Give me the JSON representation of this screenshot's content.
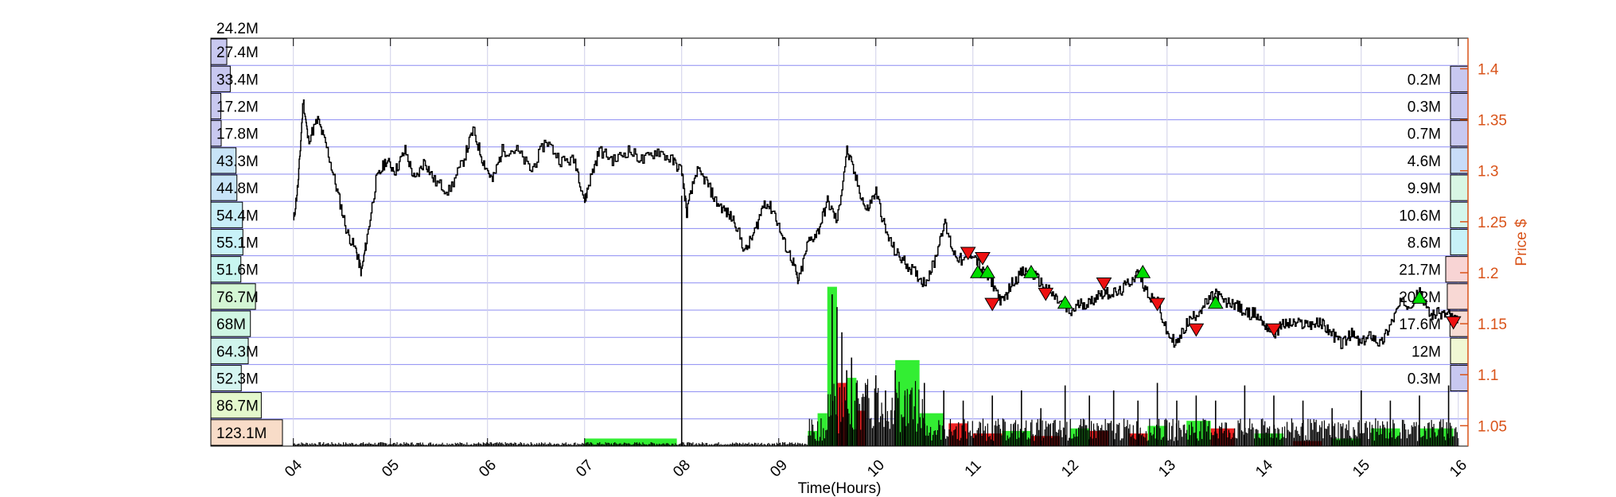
{
  "chart_data": {
    "type": "line",
    "title": "",
    "xlabel": "Time(Hours)",
    "ylabel": "",
    "y2label": "Price $",
    "x_ticks": [
      "04",
      "05",
      "06",
      "07",
      "08",
      "09",
      "10",
      "11",
      "12",
      "13",
      "14",
      "15",
      "16"
    ],
    "xlim": [
      3.15,
      16.1
    ],
    "y2lim": [
      1.03,
      1.43
    ],
    "y2_ticks": [
      1.05,
      1.1,
      1.15,
      1.2,
      1.25,
      1.3,
      1.35,
      1.4
    ],
    "grid": true,
    "colors": {
      "price": "#000000",
      "axis_right": "#d95319",
      "buy_marker": "#00dd00",
      "sell_marker": "#ee1111",
      "volume_up": "#33ee33",
      "volume_down": "#ee2222",
      "volume_base": "#000000",
      "grid_major": "#6666ee",
      "grid_minor": "#d0d0e8"
    },
    "price_series": {
      "name": "",
      "points": [
        [
          4.0,
          1.25
        ],
        [
          4.05,
          1.29
        ],
        [
          4.1,
          1.37
        ],
        [
          4.15,
          1.33
        ],
        [
          4.25,
          1.35
        ],
        [
          4.35,
          1.32
        ],
        [
          4.45,
          1.28
        ],
        [
          4.55,
          1.24
        ],
        [
          4.65,
          1.22
        ],
        [
          4.7,
          1.2
        ],
        [
          4.75,
          1.23
        ],
        [
          4.85,
          1.29
        ],
        [
          4.95,
          1.31
        ],
        [
          5.05,
          1.3
        ],
        [
          5.15,
          1.32
        ],
        [
          5.25,
          1.29
        ],
        [
          5.35,
          1.31
        ],
        [
          5.45,
          1.29
        ],
        [
          5.6,
          1.28
        ],
        [
          5.75,
          1.31
        ],
        [
          5.85,
          1.34
        ],
        [
          5.95,
          1.31
        ],
        [
          6.05,
          1.29
        ],
        [
          6.15,
          1.32
        ],
        [
          6.3,
          1.32
        ],
        [
          6.45,
          1.3
        ],
        [
          6.6,
          1.33
        ],
        [
          6.75,
          1.31
        ],
        [
          6.9,
          1.31
        ],
        [
          7.0,
          1.27
        ],
        [
          7.05,
          1.29
        ],
        [
          7.15,
          1.32
        ],
        [
          7.3,
          1.31
        ],
        [
          7.45,
          1.32
        ],
        [
          7.6,
          1.31
        ],
        [
          7.75,
          1.32
        ],
        [
          7.9,
          1.31
        ],
        [
          8.0,
          1.3
        ],
        [
          8.05,
          1.26
        ],
        [
          8.15,
          1.3
        ],
        [
          8.25,
          1.29
        ],
        [
          8.35,
          1.27
        ],
        [
          8.45,
          1.26
        ],
        [
          8.55,
          1.25
        ],
        [
          8.65,
          1.22
        ],
        [
          8.75,
          1.24
        ],
        [
          8.85,
          1.27
        ],
        [
          8.95,
          1.26
        ],
        [
          9.05,
          1.23
        ],
        [
          9.15,
          1.21
        ],
        [
          9.2,
          1.19
        ],
        [
          9.3,
          1.23
        ],
        [
          9.4,
          1.24
        ],
        [
          9.5,
          1.27
        ],
        [
          9.6,
          1.25
        ],
        [
          9.7,
          1.32
        ],
        [
          9.8,
          1.29
        ],
        [
          9.9,
          1.26
        ],
        [
          10.0,
          1.28
        ],
        [
          10.1,
          1.24
        ],
        [
          10.2,
          1.22
        ],
        [
          10.3,
          1.21
        ],
        [
          10.4,
          1.2
        ],
        [
          10.5,
          1.19
        ],
        [
          10.6,
          1.21
        ],
        [
          10.7,
          1.25
        ],
        [
          10.8,
          1.22
        ],
        [
          10.9,
          1.21
        ],
        [
          11.0,
          1.22
        ],
        [
          11.1,
          1.2
        ],
        [
          11.2,
          1.19
        ],
        [
          11.3,
          1.17
        ],
        [
          11.4,
          1.19
        ],
        [
          11.5,
          1.2
        ],
        [
          11.6,
          1.2
        ],
        [
          11.7,
          1.19
        ],
        [
          11.8,
          1.18
        ],
        [
          11.9,
          1.17
        ],
        [
          12.0,
          1.16
        ],
        [
          12.1,
          1.17
        ],
        [
          12.2,
          1.17
        ],
        [
          12.3,
          1.18
        ],
        [
          12.4,
          1.18
        ],
        [
          12.5,
          1.18
        ],
        [
          12.6,
          1.19
        ],
        [
          12.7,
          1.2
        ],
        [
          12.8,
          1.18
        ],
        [
          12.9,
          1.17
        ],
        [
          13.0,
          1.14
        ],
        [
          13.1,
          1.13
        ],
        [
          13.2,
          1.15
        ],
        [
          13.3,
          1.16
        ],
        [
          13.4,
          1.17
        ],
        [
          13.5,
          1.18
        ],
        [
          13.6,
          1.17
        ],
        [
          13.7,
          1.17
        ],
        [
          13.8,
          1.16
        ],
        [
          13.9,
          1.16
        ],
        [
          14.0,
          1.15
        ],
        [
          14.1,
          1.14
        ],
        [
          14.2,
          1.15
        ],
        [
          14.3,
          1.15
        ],
        [
          14.4,
          1.15
        ],
        [
          14.5,
          1.15
        ],
        [
          14.6,
          1.15
        ],
        [
          14.7,
          1.14
        ],
        [
          14.8,
          1.13
        ],
        [
          14.9,
          1.14
        ],
        [
          15.0,
          1.13
        ],
        [
          15.1,
          1.14
        ],
        [
          15.2,
          1.13
        ],
        [
          15.3,
          1.15
        ],
        [
          15.4,
          1.17
        ],
        [
          15.5,
          1.17
        ],
        [
          15.6,
          1.18
        ],
        [
          15.7,
          1.16
        ],
        [
          15.8,
          1.16
        ],
        [
          15.9,
          1.16
        ],
        [
          16.0,
          1.15
        ]
      ]
    },
    "buy_markers": [
      [
        11.05,
        1.2
      ],
      [
        11.15,
        1.2
      ],
      [
        11.6,
        1.2
      ],
      [
        11.95,
        1.17
      ],
      [
        12.75,
        1.2
      ],
      [
        13.5,
        1.17
      ],
      [
        15.6,
        1.175
      ]
    ],
    "sell_markers": [
      [
        10.95,
        1.22
      ],
      [
        11.1,
        1.215
      ],
      [
        11.2,
        1.17
      ],
      [
        11.75,
        1.18
      ],
      [
        12.35,
        1.19
      ],
      [
        12.9,
        1.17
      ],
      [
        13.3,
        1.145
      ],
      [
        14.1,
        1.145
      ],
      [
        15.95,
        1.152
      ]
    ],
    "volume_spikes": [
      [
        8.0,
        0.99
      ],
      [
        9.55,
        0.6
      ],
      [
        9.6,
        0.55
      ],
      [
        9.65,
        0.45
      ],
      [
        9.7,
        0.3
      ],
      [
        9.75,
        0.35
      ],
      [
        9.8,
        0.25
      ],
      [
        9.9,
        0.2
      ],
      [
        10.0,
        0.28
      ],
      [
        10.1,
        0.22
      ],
      [
        10.2,
        0.3
      ],
      [
        10.3,
        0.2
      ],
      [
        10.5,
        0.25
      ],
      [
        10.7,
        0.22
      ],
      [
        10.9,
        0.18
      ],
      [
        11.2,
        0.2
      ],
      [
        11.5,
        0.22
      ],
      [
        11.7,
        0.15
      ],
      [
        11.95,
        0.24
      ],
      [
        12.2,
        0.2
      ],
      [
        12.45,
        0.22
      ],
      [
        12.7,
        0.18
      ],
      [
        12.9,
        0.25
      ],
      [
        13.1,
        0.18
      ],
      [
        13.3,
        0.2
      ],
      [
        13.5,
        0.18
      ],
      [
        13.8,
        0.24
      ],
      [
        14.1,
        0.2
      ],
      [
        14.4,
        0.18
      ],
      [
        14.7,
        0.15
      ],
      [
        15.0,
        0.22
      ],
      [
        15.3,
        0.18
      ],
      [
        15.6,
        0.2
      ],
      [
        15.9,
        0.24
      ]
    ],
    "volume_blocks": [
      {
        "x0": 7.0,
        "x1": 7.95,
        "h": 0.03,
        "side": "up"
      },
      {
        "x0": 9.3,
        "x1": 9.4,
        "h": 0.06,
        "side": "up"
      },
      {
        "x0": 9.4,
        "x1": 9.5,
        "h": 0.13,
        "side": "up"
      },
      {
        "x0": 9.5,
        "x1": 9.6,
        "h": 0.63,
        "side": "up"
      },
      {
        "x0": 9.6,
        "x1": 9.7,
        "h": 0.25,
        "side": "down"
      },
      {
        "x0": 9.7,
        "x1": 9.8,
        "h": 0.27,
        "side": "up"
      },
      {
        "x0": 9.8,
        "x1": 9.9,
        "h": 0.14,
        "side": "down"
      },
      {
        "x0": 10.2,
        "x1": 10.45,
        "h": 0.34,
        "side": "up"
      },
      {
        "x0": 10.45,
        "x1": 10.7,
        "h": 0.13,
        "side": "up"
      },
      {
        "x0": 10.75,
        "x1": 10.95,
        "h": 0.09,
        "side": "down"
      },
      {
        "x0": 11.0,
        "x1": 11.3,
        "h": 0.05,
        "side": "down"
      },
      {
        "x0": 11.3,
        "x1": 11.6,
        "h": 0.06,
        "side": "up"
      },
      {
        "x0": 11.6,
        "x1": 11.9,
        "h": 0.04,
        "side": "down"
      },
      {
        "x0": 12.0,
        "x1": 12.2,
        "h": 0.07,
        "side": "up"
      },
      {
        "x0": 12.2,
        "x1": 12.4,
        "h": 0.06,
        "side": "down"
      },
      {
        "x0": 12.6,
        "x1": 12.8,
        "h": 0.05,
        "side": "down"
      },
      {
        "x0": 12.8,
        "x1": 13.0,
        "h": 0.08,
        "side": "up"
      },
      {
        "x0": 13.2,
        "x1": 13.45,
        "h": 0.1,
        "side": "up"
      },
      {
        "x0": 13.45,
        "x1": 13.7,
        "h": 0.07,
        "side": "down"
      },
      {
        "x0": 13.9,
        "x1": 14.2,
        "h": 0.05,
        "side": "up"
      },
      {
        "x0": 14.3,
        "x1": 14.6,
        "h": 0.02,
        "side": "down"
      },
      {
        "x0": 14.7,
        "x1": 15.0,
        "h": 0.03,
        "side": "up"
      },
      {
        "x0": 15.1,
        "x1": 15.4,
        "h": 0.07,
        "side": "up"
      },
      {
        "x0": 15.6,
        "x1": 15.95,
        "h": 0.07,
        "side": "up"
      }
    ],
    "left_volume_profile": {
      "top_label": "24.2M",
      "bins": [
        {
          "label": "27.4M",
          "value": 27.4,
          "color": "#c8c8f0"
        },
        {
          "label": "33.4M",
          "value": 33.4,
          "color": "#c8c8f0"
        },
        {
          "label": "17.2M",
          "value": 17.2,
          "color": "#c8c8f0"
        },
        {
          "label": "17.8M",
          "value": 17.8,
          "color": "#c8c8f0"
        },
        {
          "label": "43.3M",
          "value": 43.3,
          "color": "#c8e4f8"
        },
        {
          "label": "44.8M",
          "value": 44.8,
          "color": "#c8e4f8"
        },
        {
          "label": "54.4M",
          "value": 54.4,
          "color": "#c8eef8"
        },
        {
          "label": "55.1M",
          "value": 55.1,
          "color": "#c8f2f8"
        },
        {
          "label": "51.6M",
          "value": 51.6,
          "color": "#c8f6f0"
        },
        {
          "label": "76.7M",
          "value": 76.7,
          "color": "#d4f6d4"
        },
        {
          "label": "68M",
          "value": 68.0,
          "color": "#d0f6e4"
        },
        {
          "label": "64.3M",
          "value": 64.3,
          "color": "#d0f4ec"
        },
        {
          "label": "52.3M",
          "value": 52.3,
          "color": "#d4f4f0"
        },
        {
          "label": "86.7M",
          "value": 86.7,
          "color": "#e4f8cc"
        },
        {
          "label": "123.1M",
          "value": 123.1,
          "color": "#f8dcc8"
        }
      ]
    },
    "right_volume_profile": {
      "bins": [
        {
          "label": "0.2M",
          "value": 0.2,
          "color": "#c8c8f0"
        },
        {
          "label": "0.3M",
          "value": 0.3,
          "color": "#c8c8f0"
        },
        {
          "label": "0.7M",
          "value": 0.7,
          "color": "#c8c8f0"
        },
        {
          "label": "4.6M",
          "value": 4.6,
          "color": "#c8dcf8"
        },
        {
          "label": "9.9M",
          "value": 9.9,
          "color": "#d8f6e4"
        },
        {
          "label": "10.6M",
          "value": 10.6,
          "color": "#d4f6ec"
        },
        {
          "label": "8.6M",
          "value": 8.6,
          "color": "#c8f2f8"
        },
        {
          "label": "21.7M",
          "value": 21.7,
          "color": "#f8d4d4"
        },
        {
          "label": "20.2M",
          "value": 20.2,
          "color": "#f8d8d4"
        },
        {
          "label": "17.6M",
          "value": 17.6,
          "color": "#f8dcd4"
        },
        {
          "label": "12M",
          "value": 12.0,
          "color": "#f0f8d4"
        },
        {
          "label": "0.3M",
          "value": 0.3,
          "color": "#c8c8f0"
        }
      ]
    }
  }
}
